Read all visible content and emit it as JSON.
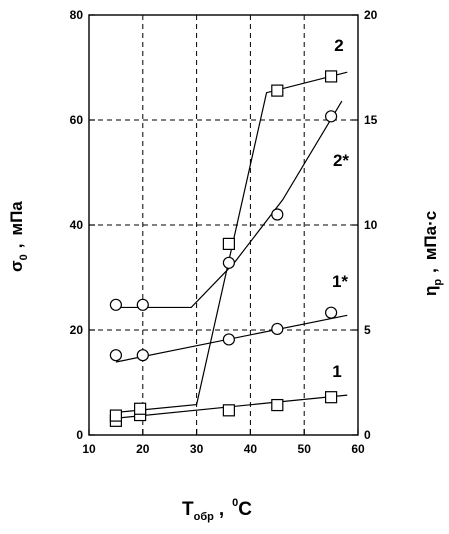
{
  "chart_data": {
    "type": "scatter",
    "x": {
      "label_main": "T",
      "label_sub": "обр",
      "label_sep": ",",
      "label_unit_sup": "0",
      "label_unit": "C",
      "lim": [
        10,
        60
      ],
      "ticks": [
        10,
        20,
        30,
        40,
        50,
        60
      ]
    },
    "y_left": {
      "label_main": "σ",
      "label_sub": "0",
      "label_sep": ",",
      "label_unit": "мПа",
      "lim": [
        0,
        80
      ],
      "ticks": [
        0,
        20,
        40,
        60,
        80
      ]
    },
    "y_right": {
      "label_main": "η",
      "label_sub": "р",
      "label_sep": ",",
      "label_unit": "мПа·с",
      "lim": [
        0,
        20
      ],
      "ticks": [
        0,
        5,
        10,
        15,
        20
      ]
    },
    "grid": true,
    "series": [
      {
        "name": "1",
        "axis": "left",
        "marker": "square",
        "points": [
          [
            15,
            2.7
          ],
          [
            15,
            3.7
          ],
          [
            19.5,
            3.8
          ],
          [
            19.5,
            5.0
          ],
          [
            36,
            4.7
          ],
          [
            45,
            5.7
          ],
          [
            55,
            7.2
          ]
        ],
        "fit": [
          [
            15,
            3.2
          ],
          [
            58,
            7.6
          ]
        ]
      },
      {
        "name": "1*",
        "axis": "left",
        "marker": "circle",
        "points": [
          [
            15,
            15.2
          ],
          [
            20,
            15.2
          ],
          [
            36,
            18.2
          ],
          [
            45,
            20.2
          ],
          [
            55,
            23.3
          ]
        ],
        "fit": [
          [
            15,
            13.9
          ],
          [
            58,
            22.8
          ]
        ]
      },
      {
        "name": "2",
        "axis": "left",
        "marker": "square",
        "points": [
          [
            36,
            36.4
          ],
          [
            45,
            65.6
          ],
          [
            55,
            68.3
          ]
        ],
        "fit": [
          [
            15,
            4.3
          ],
          [
            30,
            5.8
          ],
          [
            43,
            65.2
          ],
          [
            58,
            69.1
          ]
        ]
      },
      {
        "name": "2*",
        "axis": "left",
        "marker": "circle",
        "points": [
          [
            15,
            24.8
          ],
          [
            20,
            24.8
          ],
          [
            36,
            32.8
          ],
          [
            45,
            42.0
          ],
          [
            55,
            60.7
          ]
        ],
        "fit": [
          [
            15,
            24.3
          ],
          [
            29,
            24.3
          ],
          [
            37,
            32.8
          ],
          [
            46,
            44.8
          ],
          [
            57,
            63.6
          ]
        ]
      }
    ]
  }
}
